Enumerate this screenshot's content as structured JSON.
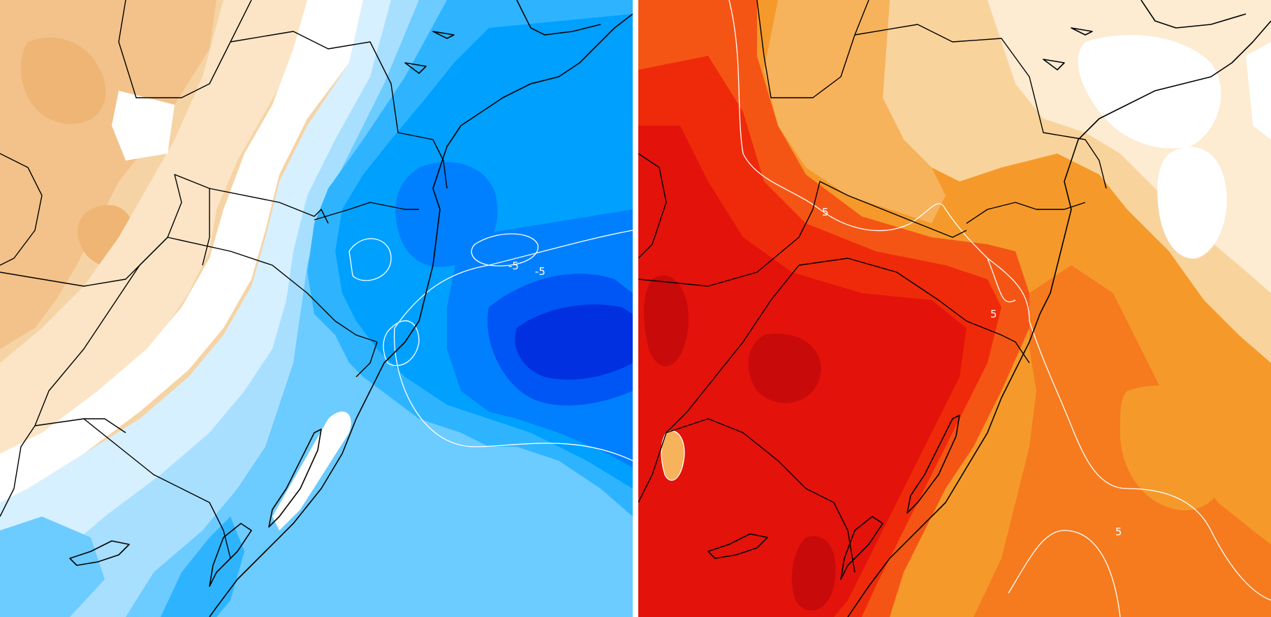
{
  "maps": [
    {
      "id": "cold-anomaly",
      "colors": {
        "land_base": "#f6d3a4",
        "warm_light": "#fbe5c6",
        "warm_mid": "#f2c28a",
        "white": "#ffffff",
        "blue_1": "#d6f0ff",
        "blue_2": "#a8dfff",
        "blue_3": "#6ccbff",
        "blue_4": "#2eb4ff",
        "blue_5": "#00a0ff",
        "blue_6": "#0080ff",
        "blue_7": "#0055f5",
        "blue_8": "#0030e0"
      },
      "contour_labels": [
        "-5",
        "-5"
      ]
    },
    {
      "id": "warm-anomaly",
      "colors": {
        "pale": "#fdebd2",
        "light": "#f9d39c",
        "orange_1": "#f7b25c",
        "orange_2": "#f59a2a",
        "orange_3": "#f57b1e",
        "red_1": "#f55514",
        "red_2": "#ef2a0a",
        "red_3": "#e3120a",
        "red_4": "#c80a0a",
        "white": "#ffffff"
      },
      "contour_labels": [
        "5",
        "5",
        "5"
      ]
    }
  ]
}
